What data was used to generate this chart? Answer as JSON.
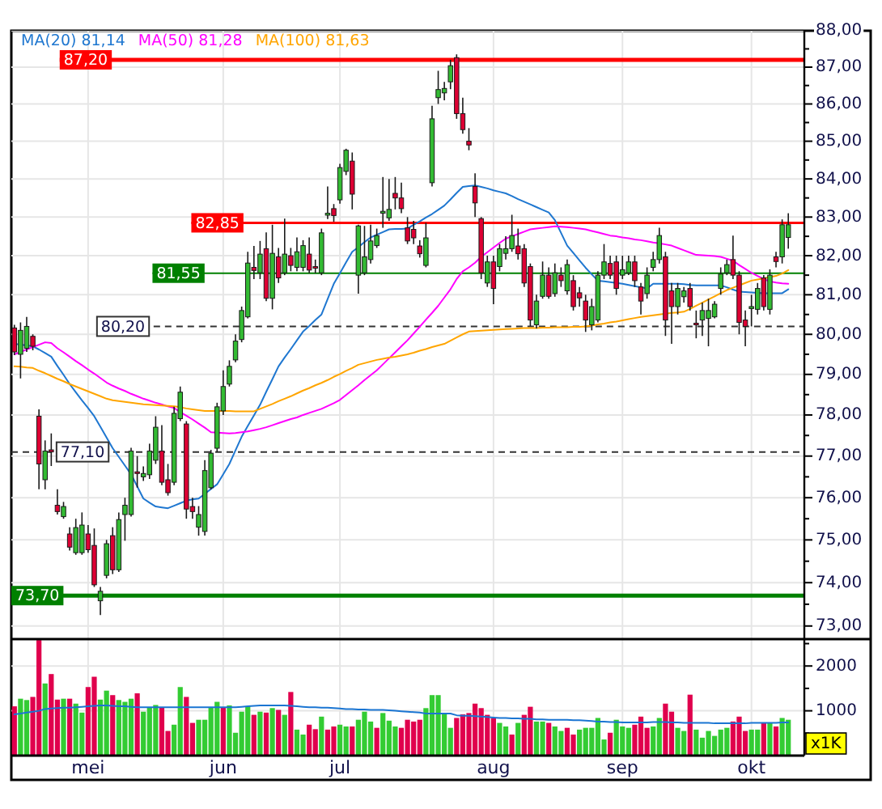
{
  "chart_data": [
    {
      "type": "candlestick",
      "log": true,
      "ylim": [
        72.7,
        88
      ],
      "tick_labels": "y",
      "grid": true,
      "legend": "top left",
      "categories": [
        null,
        null,
        null,
        null,
        null,
        null,
        null,
        null,
        null,
        null,
        null,
        null,
        null,
        null,
        null,
        null,
        null,
        null,
        null,
        null,
        null,
        null,
        null,
        null,
        null,
        null,
        null,
        null,
        null,
        null,
        null,
        null,
        null,
        null,
        null,
        null,
        null,
        null,
        null,
        null,
        null,
        null,
        null,
        null,
        null,
        null,
        null,
        null,
        null,
        null,
        null,
        null,
        null,
        null,
        null,
        null,
        null,
        null,
        null,
        null,
        null,
        null,
        null,
        null,
        null,
        null,
        null,
        null,
        null,
        null,
        null,
        null,
        null,
        null,
        null,
        null,
        null,
        null,
        null,
        null,
        null,
        null,
        null,
        null,
        null,
        null,
        null,
        null,
        null,
        null,
        null,
        null,
        null,
        null,
        null,
        null,
        null,
        null,
        null,
        null,
        null,
        null,
        null,
        null,
        null,
        null,
        null,
        null,
        null,
        null,
        null,
        null,
        null,
        null,
        null,
        null,
        null,
        null,
        null,
        null,
        null,
        null,
        null,
        null,
        null,
        null,
        null
      ],
      "yticks": [
        {
          "value": 73,
          "label": "73,00"
        },
        {
          "value": 73.5,
          "label": null
        },
        {
          "value": 74,
          "label": "74,00"
        },
        {
          "value": 74.5,
          "label": null
        },
        {
          "value": 75,
          "label": "75,00"
        },
        {
          "value": 75.5,
          "label": null
        },
        {
          "value": 76,
          "label": "76,00"
        },
        {
          "value": 76.5,
          "label": null
        },
        {
          "value": 77,
          "label": "77,00"
        },
        {
          "value": 77.5,
          "label": null
        },
        {
          "value": 78,
          "label": "78,00"
        },
        {
          "value": 78.5,
          "label": null
        },
        {
          "value": 79,
          "label": "79,00"
        },
        {
          "value": 79.5,
          "label": null
        },
        {
          "value": 80,
          "label": "80,00"
        },
        {
          "value": 80.5,
          "label": null
        },
        {
          "value": 81,
          "label": "81,00"
        },
        {
          "value": 81.5,
          "label": null
        },
        {
          "value": 82,
          "label": "82,00"
        },
        {
          "value": 82.5,
          "label": null
        },
        {
          "value": 83,
          "label": "83,00"
        },
        {
          "value": 83.5,
          "label": null
        },
        {
          "value": 84,
          "label": "84,00"
        },
        {
          "value": 84.5,
          "label": null
        },
        {
          "value": 85,
          "label": "85,00"
        },
        {
          "value": 85.5,
          "label": null
        },
        {
          "value": 86,
          "label": "86,00"
        },
        {
          "value": 86.5,
          "label": null
        },
        {
          "value": 87,
          "label": "87,00"
        },
        {
          "value": 87.5,
          "label": null
        },
        {
          "value": 88,
          "label": "88,00"
        }
      ],
      "ref_lines": [
        {
          "axis": "y",
          "value": 87.2,
          "label": "87,20",
          "color": "#ff0000"
        },
        {
          "axis": "y",
          "value": 82.85,
          "label": "82,85",
          "color": "#ff0000"
        },
        {
          "axis": "y",
          "value": 81.55,
          "label": "81,55",
          "color": "#008000"
        },
        {
          "axis": "y",
          "value": 80.2,
          "label": "80,20",
          "color": "#333333",
          "line_style": "dashed"
        },
        {
          "axis": "y",
          "value": 77.1,
          "label": "77,10",
          "color": "#333333",
          "line_style": "dashed"
        },
        {
          "axis": "y",
          "value": 73.7,
          "label": "73,70",
          "color": "#008000"
        }
      ],
      "ohlc": [
        [
          80.16,
          80.24,
          79.48,
          79.56
        ],
        [
          79.5,
          80.3,
          78.9,
          80.1
        ],
        [
          79.65,
          80.44,
          79.56,
          80.2
        ],
        [
          79.95,
          80.0,
          79.6,
          79.7
        ],
        [
          77.97,
          78.14,
          76.2,
          76.81
        ],
        [
          76.43,
          77.38,
          76.2,
          77.12
        ],
        [
          77.15,
          77.55,
          76.76,
          77.1
        ],
        [
          75.82,
          76.2,
          75.6,
          75.67
        ],
        [
          75.55,
          75.9,
          75.5,
          75.79
        ],
        [
          75.14,
          75.3,
          74.75,
          74.83
        ],
        [
          74.7,
          75.5,
          74.65,
          75.29
        ],
        [
          74.7,
          75.65,
          74.65,
          75.35
        ],
        [
          75.14,
          75.35,
          74.7,
          74.77
        ],
        [
          74.87,
          75.27,
          73.9,
          73.95
        ],
        [
          73.58,
          73.9,
          73.25,
          73.8
        ],
        [
          74.17,
          75.0,
          74.1,
          74.91
        ],
        [
          75.1,
          75.3,
          74.2,
          74.3
        ],
        [
          74.3,
          75.65,
          74.25,
          75.48
        ],
        [
          75.6,
          76.0,
          74.98,
          75.82
        ],
        [
          75.6,
          77.2,
          75.55,
          77.12
        ],
        [
          76.62,
          77.0,
          76.24,
          76.58
        ],
        [
          76.5,
          76.75,
          76.4,
          76.58
        ],
        [
          76.55,
          77.3,
          76.45,
          77.12
        ],
        [
          76.9,
          77.97,
          76.81,
          77.7
        ],
        [
          77.12,
          77.75,
          76.3,
          76.37
        ],
        [
          76.43,
          76.81,
          76.05,
          76.12
        ],
        [
          76.37,
          78.2,
          76.3,
          78.04
        ],
        [
          77.91,
          78.7,
          77.85,
          78.56
        ],
        [
          77.78,
          77.85,
          75.5,
          75.73
        ],
        [
          75.79,
          76.0,
          75.5,
          75.67
        ],
        [
          75.3,
          75.8,
          75.1,
          75.6
        ],
        [
          75.2,
          76.9,
          75.1,
          76.65
        ],
        [
          76.24,
          77.15,
          76.2,
          77.07
        ],
        [
          77.19,
          78.3,
          77.1,
          78.2
        ],
        [
          78.1,
          79.1,
          78.0,
          78.7
        ],
        [
          78.76,
          79.35,
          78.7,
          79.2
        ],
        [
          79.36,
          80.0,
          79.3,
          79.83
        ],
        [
          79.87,
          80.7,
          79.8,
          80.6
        ],
        [
          80.44,
          82.1,
          80.4,
          81.81
        ],
        [
          81.7,
          82.25,
          81.4,
          81.62
        ],
        [
          81.56,
          82.38,
          81.4,
          82.04
        ],
        [
          82.18,
          82.6,
          80.84,
          80.91
        ],
        [
          80.91,
          82.8,
          80.63,
          82.06
        ],
        [
          81.97,
          82.2,
          81.3,
          81.43
        ],
        [
          81.56,
          82.96,
          81.5,
          82.04
        ],
        [
          82.0,
          82.2,
          81.6,
          81.75
        ],
        [
          81.7,
          82.47,
          81.6,
          82.1
        ],
        [
          81.7,
          82.4,
          81.6,
          82.26
        ],
        [
          82.04,
          82.47,
          81.55,
          81.63
        ],
        [
          81.72,
          81.9,
          81.55,
          81.68
        ],
        [
          81.56,
          82.7,
          81.5,
          82.59
        ],
        [
          83.05,
          83.8,
          82.95,
          83.1
        ],
        [
          83.22,
          83.34,
          82.88,
          83.04
        ],
        [
          83.45,
          84.4,
          83.35,
          84.3
        ],
        [
          84.2,
          84.8,
          84.1,
          84.76
        ],
        [
          84.47,
          84.7,
          83.2,
          83.6
        ],
        [
          81.5,
          82.8,
          81.03,
          82.77
        ],
        [
          81.56,
          82.77,
          81.5,
          81.97
        ],
        [
          81.9,
          82.8,
          81.8,
          82.38
        ],
        [
          82.26,
          82.7,
          82.2,
          82.52
        ],
        [
          83.1,
          84.05,
          82.72,
          83.15
        ],
        [
          82.98,
          84.0,
          82.9,
          83.2
        ],
        [
          83.62,
          84.05,
          83.2,
          83.5
        ],
        [
          83.5,
          83.9,
          83.1,
          83.22
        ],
        [
          82.72,
          83.0,
          82.3,
          82.38
        ],
        [
          82.68,
          82.9,
          82.3,
          82.46
        ],
        [
          82.25,
          82.4,
          81.95,
          82.05
        ],
        [
          81.75,
          82.85,
          81.7,
          82.46
        ],
        [
          83.9,
          85.95,
          83.8,
          85.6
        ],
        [
          86.17,
          86.9,
          86.0,
          86.39
        ],
        [
          86.3,
          86.6,
          86.1,
          86.42
        ],
        [
          86.6,
          87.2,
          86.4,
          87.04
        ],
        [
          87.26,
          87.35,
          85.6,
          85.74
        ],
        [
          85.74,
          86.17,
          85.2,
          85.31
        ],
        [
          85.0,
          85.35,
          84.76,
          84.9
        ],
        [
          83.8,
          84.15,
          83.0,
          83.37
        ],
        [
          82.96,
          83.0,
          81.4,
          81.56
        ],
        [
          81.3,
          82.0,
          81.2,
          81.84
        ],
        [
          81.84,
          82.0,
          80.76,
          81.16
        ],
        [
          81.72,
          82.3,
          81.6,
          82.18
        ],
        [
          82.06,
          82.5,
          81.9,
          82.18
        ],
        [
          82.18,
          83.06,
          82.1,
          82.52
        ],
        [
          82.25,
          82.7,
          81.9,
          82.05
        ],
        [
          82.18,
          82.3,
          81.2,
          81.3
        ],
        [
          81.72,
          81.8,
          80.2,
          80.36
        ],
        [
          80.24,
          81.0,
          80.15,
          80.84
        ],
        [
          80.96,
          81.85,
          80.9,
          81.5
        ],
        [
          81.5,
          81.7,
          80.9,
          80.96
        ],
        [
          81.03,
          81.8,
          80.95,
          81.56
        ],
        [
          81.5,
          81.7,
          81.2,
          81.36
        ],
        [
          81.1,
          81.9,
          81.0,
          81.77
        ],
        [
          81.36,
          81.5,
          80.6,
          80.7
        ],
        [
          81.05,
          81.2,
          80.7,
          80.92
        ],
        [
          80.84,
          81.0,
          80.06,
          80.36
        ],
        [
          80.24,
          80.9,
          80.1,
          80.7
        ],
        [
          80.36,
          81.6,
          80.3,
          81.5
        ],
        [
          81.5,
          82.3,
          81.4,
          81.84
        ],
        [
          81.8,
          82.0,
          81.4,
          81.5
        ],
        [
          81.84,
          82.0,
          81.0,
          81.16
        ],
        [
          81.5,
          82.0,
          81.4,
          81.64
        ],
        [
          81.56,
          82.0,
          81.5,
          81.84
        ],
        [
          81.84,
          82.0,
          81.2,
          81.36
        ],
        [
          81.2,
          81.3,
          80.5,
          80.84
        ],
        [
          81.03,
          81.7,
          80.9,
          81.5
        ],
        [
          81.7,
          82.1,
          81.6,
          81.9
        ],
        [
          81.9,
          82.72,
          81.8,
          82.52
        ],
        [
          81.97,
          82.1,
          79.96,
          80.36
        ],
        [
          81.1,
          81.3,
          79.76,
          80.7
        ],
        [
          80.7,
          81.3,
          80.5,
          81.16
        ],
        [
          80.95,
          81.2,
          80.8,
          81.1
        ],
        [
          81.16,
          81.3,
          80.6,
          80.7
        ],
        [
          80.28,
          80.6,
          79.9,
          80.24
        ],
        [
          80.36,
          80.8,
          79.96,
          80.6
        ],
        [
          80.4,
          80.9,
          79.7,
          80.6
        ],
        [
          80.44,
          80.84,
          80.4,
          80.76
        ],
        [
          81.16,
          81.7,
          81.0,
          81.53
        ],
        [
          81.56,
          81.9,
          81.5,
          81.77
        ],
        [
          81.9,
          82.52,
          81.4,
          81.5
        ],
        [
          81.5,
          81.6,
          80.0,
          80.3
        ],
        [
          80.36,
          80.6,
          79.7,
          80.2
        ],
        [
          80.65,
          81.0,
          80.2,
          80.7
        ],
        [
          80.63,
          81.3,
          80.5,
          81.16
        ],
        [
          81.43,
          81.5,
          80.6,
          80.7
        ],
        [
          80.63,
          81.65,
          80.5,
          81.5
        ],
        [
          81.97,
          82.1,
          81.7,
          81.85
        ],
        [
          81.97,
          82.94,
          81.8,
          82.8
        ],
        [
          82.47,
          83.1,
          82.18,
          82.8
        ]
      ],
      "series": [
        {
          "type": "line",
          "name": "MA(20) 81,14",
          "color": "#1f77d0",
          "values": [
            79.76,
            79.74,
            79.72,
            79.7,
            79.62,
            79.53,
            79.44,
            79.21,
            78.99,
            78.76,
            78.56,
            78.36,
            78.17,
            77.97,
            77.71,
            77.45,
            77.19,
            76.98,
            76.77,
            76.56,
            76.27,
            75.98,
            75.88,
            75.79,
            75.77,
            75.75,
            75.81,
            75.87,
            75.93,
            75.96,
            75.98,
            76.09,
            76.21,
            76.32,
            76.56,
            76.81,
            77.14,
            77.47,
            77.73,
            77.99,
            78.25,
            78.57,
            78.88,
            79.2,
            79.42,
            79.63,
            79.85,
            80.07,
            80.21,
            80.36,
            80.5,
            80.89,
            81.28,
            81.55,
            81.83,
            82.1,
            82.22,
            82.35,
            82.47,
            82.54,
            82.61,
            82.68,
            82.69,
            82.69,
            82.7,
            82.8,
            82.89,
            82.99,
            83.08,
            83.19,
            83.3,
            83.46,
            83.63,
            83.79,
            83.81,
            83.83,
            83.79,
            83.75,
            83.7,
            83.66,
            83.62,
            83.55,
            83.47,
            83.4,
            83.33,
            83.26,
            83.19,
            83.12,
            82.92,
            82.59,
            82.26,
            82.07,
            81.88,
            81.69,
            81.52,
            81.36,
            81.34,
            81.32,
            81.3,
            81.28,
            81.25,
            81.22,
            81.19,
            81.16,
            81.28,
            81.28,
            81.28,
            81.28,
            81.28,
            81.27,
            81.25,
            81.24,
            81.24,
            81.24,
            81.24,
            81.24,
            81.19,
            81.13,
            81.08,
            81.07,
            81.06,
            81.05,
            81.04,
            81.04,
            81.04,
            81.04,
            81.14
          ]
        },
        {
          "type": "line",
          "name": "MA(50) 81,28",
          "color": "#ff00ff",
          "values": [
            79.5,
            79.56,
            79.62,
            79.68,
            79.74,
            79.8,
            79.78,
            79.65,
            79.55,
            79.44,
            79.33,
            79.23,
            79.12,
            79.02,
            78.91,
            78.8,
            78.72,
            78.65,
            78.59,
            78.52,
            78.46,
            78.4,
            78.35,
            78.3,
            78.26,
            78.21,
            78.17,
            78.07,
            77.98,
            77.89,
            77.79,
            77.69,
            77.58,
            77.57,
            77.56,
            77.55,
            77.56,
            77.58,
            77.6,
            77.63,
            77.66,
            77.7,
            77.75,
            77.8,
            77.85,
            77.9,
            77.94,
            78.0,
            78.05,
            78.1,
            78.15,
            78.22,
            78.29,
            78.37,
            78.49,
            78.61,
            78.73,
            78.86,
            78.98,
            79.1,
            79.25,
            79.4,
            79.55,
            79.7,
            79.85,
            80.02,
            80.19,
            80.37,
            80.54,
            80.72,
            80.93,
            81.14,
            81.4,
            81.6,
            81.7,
            81.82,
            81.97,
            82.09,
            82.21,
            82.33,
            82.44,
            82.5,
            82.56,
            82.62,
            82.68,
            82.7,
            82.72,
            82.74,
            82.76,
            82.75,
            82.74,
            82.72,
            82.7,
            82.68,
            82.64,
            82.6,
            82.56,
            82.52,
            82.5,
            82.47,
            82.45,
            82.42,
            82.4,
            82.37,
            82.34,
            82.32,
            82.29,
            82.26,
            82.2,
            82.14,
            82.08,
            82.02,
            82.01,
            82.0,
            81.99,
            81.97,
            81.92,
            81.87,
            81.76,
            81.66,
            81.56,
            81.48,
            81.4,
            81.34,
            81.31,
            81.29,
            81.28
          ]
        },
        {
          "type": "line",
          "name": "MA(100) 81,63",
          "color": "#ffa500",
          "values": [
            79.2,
            79.19,
            79.17,
            79.16,
            79.09,
            79.03,
            78.96,
            78.89,
            78.83,
            78.76,
            78.7,
            78.64,
            78.58,
            78.52,
            78.46,
            78.4,
            78.36,
            78.34,
            78.32,
            78.3,
            78.28,
            78.26,
            78.25,
            78.24,
            78.23,
            78.22,
            78.21,
            78.19,
            78.16,
            78.14,
            78.12,
            78.1,
            78.1,
            78.1,
            78.1,
            78.1,
            78.09,
            78.09,
            78.09,
            78.09,
            78.15,
            78.21,
            78.27,
            78.34,
            78.4,
            78.46,
            78.53,
            78.6,
            78.66,
            78.73,
            78.79,
            78.86,
            78.94,
            79.01,
            79.09,
            79.16,
            79.24,
            79.28,
            79.32,
            79.36,
            79.39,
            79.42,
            79.44,
            79.47,
            79.5,
            79.54,
            79.59,
            79.63,
            79.68,
            79.72,
            79.76,
            79.84,
            79.92,
            80.0,
            80.07,
            80.08,
            80.09,
            80.1,
            80.11,
            80.12,
            80.13,
            80.14,
            80.15,
            80.16,
            80.16,
            80.16,
            80.17,
            80.17,
            80.18,
            80.18,
            80.18,
            80.19,
            80.19,
            80.2,
            80.22,
            80.25,
            80.27,
            80.3,
            80.32,
            80.35,
            80.38,
            80.41,
            80.44,
            80.46,
            80.48,
            80.5,
            80.52,
            80.54,
            80.55,
            80.57,
            80.64,
            80.72,
            80.8,
            80.88,
            80.96,
            81.04,
            81.12,
            81.18,
            81.24,
            81.3,
            81.36,
            81.39,
            81.42,
            81.45,
            81.48,
            81.54,
            81.63
          ]
        }
      ]
    },
    {
      "type": "bar",
      "ylim": [
        0,
        2600
      ],
      "ylabel": "x1K",
      "grid": true,
      "categories": [
        null,
        null,
        null,
        null,
        null,
        null,
        null,
        null,
        null,
        null,
        null,
        null,
        "mei",
        null,
        null,
        null,
        null,
        null,
        null,
        null,
        null,
        null,
        null,
        null,
        null,
        null,
        null,
        null,
        null,
        null,
        null,
        null,
        null,
        null,
        "jun",
        null,
        null,
        null,
        null,
        null,
        null,
        null,
        null,
        null,
        null,
        null,
        null,
        null,
        null,
        null,
        null,
        null,
        null,
        "jul",
        null,
        null,
        null,
        null,
        null,
        null,
        null,
        null,
        null,
        null,
        null,
        null,
        null,
        null,
        null,
        null,
        null,
        null,
        null,
        null,
        null,
        null,
        null,
        null,
        "aug",
        null,
        null,
        null,
        null,
        null,
        null,
        null,
        null,
        null,
        null,
        null,
        null,
        null,
        null,
        null,
        null,
        null,
        null,
        null,
        null,
        "sep",
        null,
        null,
        null,
        null,
        null,
        null,
        null,
        null,
        null,
        null,
        null,
        null,
        null,
        null,
        null,
        null,
        null,
        null,
        null,
        null,
        "okt",
        null,
        null,
        null,
        null,
        null,
        null
      ],
      "yticks": [
        {
          "value": 500,
          "label": null
        },
        1000,
        {
          "value": 1500,
          "label": null
        },
        2000,
        {
          "value": 2500,
          "label": null
        }
      ],
      "series": [
        {
          "type": "bar",
          "values": [
            1100,
            1270,
            1240,
            1310,
            2580,
            1610,
            1820,
            1250,
            1270,
            1270,
            1160,
            960,
            1530,
            1760,
            1250,
            1450,
            1350,
            1240,
            1200,
            1270,
            1390,
            980,
            1080,
            1130,
            1080,
            550,
            690,
            1530,
            1310,
            730,
            800,
            800,
            1080,
            1200,
            1080,
            1120,
            510,
            980,
            1100,
            910,
            980,
            960,
            1060,
            1020,
            910,
            1420,
            580,
            470,
            690,
            590,
            870,
            580,
            650,
            690,
            650,
            650,
            800,
            980,
            760,
            620,
            950,
            780,
            650,
            620,
            800,
            760,
            800,
            1060,
            1350,
            1350,
            950,
            620,
            840,
            920,
            950,
            1160,
            1060,
            910,
            840,
            730,
            650,
            470,
            730,
            910,
            1090,
            760,
            760,
            730,
            650,
            550,
            620,
            470,
            580,
            620,
            620,
            840,
            360,
            510,
            800,
            650,
            620,
            690,
            870,
            620,
            650,
            840,
            1160,
            980,
            620,
            550,
            1360,
            580,
            400,
            550,
            440,
            580,
            620,
            760,
            870,
            550,
            580,
            580,
            730,
            730,
            650,
            840,
            800
          ],
          "colors": [
            "#e0004d",
            "#33cc33",
            "#33cc33",
            "#e0004d",
            "#e0004d",
            "#33cc33",
            "#e0004d",
            "#e0004d",
            "#33cc33",
            "#e0004d",
            "#33cc33",
            "#33cc33",
            "#e0004d",
            "#e0004d",
            "#33cc33",
            "#33cc33",
            "#e0004d",
            "#33cc33",
            "#33cc33",
            "#33cc33",
            "#e0004d",
            "#33cc33",
            "#33cc33",
            "#33cc33",
            "#e0004d",
            "#e0004d",
            "#33cc33",
            "#33cc33",
            "#e0004d",
            "#e0004d",
            "#33cc33",
            "#33cc33",
            "#33cc33",
            "#33cc33",
            "#e0004d",
            "#33cc33",
            "#33cc33",
            "#33cc33",
            "#33cc33",
            "#e0004d",
            "#33cc33",
            "#e0004d",
            "#33cc33",
            "#e0004d",
            "#33cc33",
            "#e0004d",
            "#33cc33",
            "#33cc33",
            "#e0004d",
            "#e0004d",
            "#33cc33",
            "#e0004d",
            "#e0004d",
            "#33cc33",
            "#33cc33",
            "#e0004d",
            "#33cc33",
            "#33cc33",
            "#33cc33",
            "#e0004d",
            "#33cc33",
            "#33cc33",
            "#33cc33",
            "#e0004d",
            "#e0004d",
            "#e0004d",
            "#e0004d",
            "#33cc33",
            "#33cc33",
            "#33cc33",
            "#33cc33",
            "#33cc33",
            "#e0004d",
            "#e0004d",
            "#e0004d",
            "#e0004d",
            "#e0004d",
            "#e0004d",
            "#e0004d",
            "#33cc33",
            "#33cc33",
            "#e0004d",
            "#33cc33",
            "#e0004d",
            "#e0004d",
            "#33cc33",
            "#33cc33",
            "#e0004d",
            "#33cc33",
            "#33cc33",
            "#e0004d",
            "#e0004d",
            "#33cc33",
            "#33cc33",
            "#33cc33",
            "#33cc33",
            "#33cc33",
            "#e0004d",
            "#33cc33",
            "#33cc33",
            "#33cc33",
            "#e0004d",
            "#e0004d",
            "#e0004d",
            "#33cc33",
            "#33cc33",
            "#e0004d",
            "#e0004d",
            "#33cc33",
            "#33cc33",
            "#e0004d",
            "#33cc33",
            "#33cc33",
            "#33cc33",
            "#33cc33",
            "#33cc33",
            "#33cc33",
            "#e0004d",
            "#e0004d",
            "#e0004d",
            "#33cc33",
            "#33cc33",
            "#e0004d",
            "#33cc33",
            "#e0004d",
            "#33cc33",
            "#33cc33"
          ]
        },
        {
          "type": "line",
          "color": "#1a75d2",
          "values": [
            920,
            940,
            960,
            980,
            1000,
            1040,
            1050,
            1060,
            1070,
            1070,
            1080,
            1090,
            1100,
            1110,
            1120,
            1120,
            1110,
            1100,
            1100,
            1090,
            1080,
            1080,
            1080,
            1080,
            1080,
            1080,
            1080,
            1080,
            1080,
            1080,
            1080,
            1080,
            1080,
            1080,
            1080,
            1080,
            1080,
            1090,
            1100,
            1110,
            1120,
            1120,
            1120,
            1120,
            1120,
            1110,
            1100,
            1090,
            1080,
            1080,
            1070,
            1070,
            1060,
            1050,
            1040,
            1040,
            1030,
            1030,
            1020,
            1020,
            1020,
            1010,
            1000,
            990,
            980,
            970,
            960,
            940,
            940,
            940,
            940,
            940,
            900,
            890,
            890,
            880,
            870,
            860,
            850,
            840,
            840,
            830,
            830,
            820,
            820,
            810,
            810,
            800,
            800,
            800,
            800,
            790,
            790,
            780,
            770,
            760,
            760,
            750,
            750,
            740,
            740,
            740,
            740,
            740,
            750,
            750,
            750,
            740,
            740,
            730,
            730,
            730,
            730,
            730,
            720,
            720,
            720,
            720,
            720,
            720,
            730,
            730,
            730,
            730,
            730,
            740,
            740
          ]
        }
      ]
    }
  ]
}
